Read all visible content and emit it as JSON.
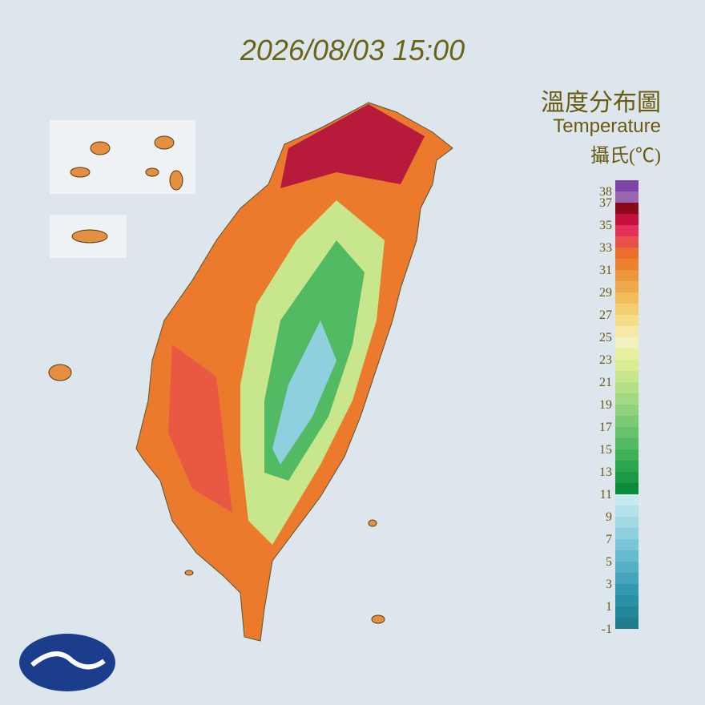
{
  "title": "2026/08/03 15:00",
  "legend": {
    "title": "溫度分布圖",
    "subtitle": "Temperature",
    "unit": "攝氏(℃)",
    "labels": [
      38,
      37,
      35,
      33,
      31,
      29,
      27,
      25,
      23,
      21,
      19,
      17,
      15,
      13,
      11,
      9,
      7,
      5,
      3,
      1,
      -1
    ],
    "colors": [
      "#1f7d8c",
      "#24869a",
      "#2990a6",
      "#3399b0",
      "#44a5bc",
      "#55b0c6",
      "#66bbcf",
      "#7ac6d8",
      "#8ed0df",
      "#a2d9e5",
      "#b5e2ea",
      "#c5eaef",
      "#0a8a3a",
      "#1a9a45",
      "#2ca64e",
      "#3eb058",
      "#52ba62",
      "#66c36c",
      "#7acb74",
      "#8ed27c",
      "#a2d982",
      "#b6e088",
      "#c8e68c",
      "#dcec92",
      "#e8f0a0",
      "#f0f3c0",
      "#f6e9a8",
      "#f5dc88",
      "#f4cd6e",
      "#f2bc5a",
      "#f0a94a",
      "#ee963c",
      "#ec8230",
      "#ea6e2c",
      "#e8504a",
      "#e23058",
      "#c4103c",
      "#8a0a1c",
      "#9a66b0",
      "#7e44a8"
    ]
  }
}
